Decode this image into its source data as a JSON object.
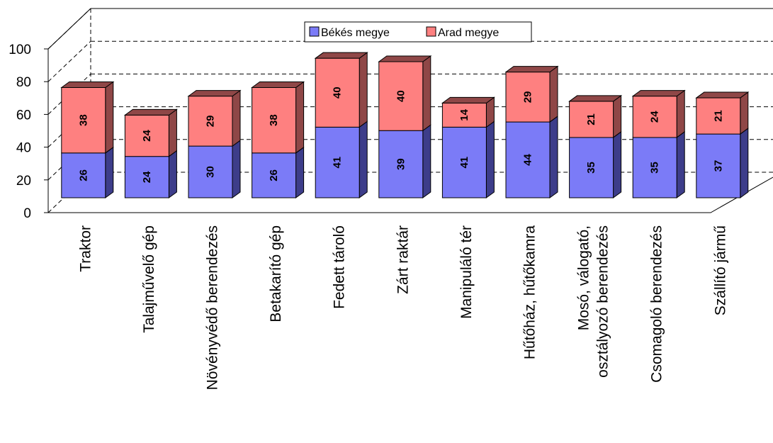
{
  "chart_data": {
    "type": "bar",
    "stacked": true,
    "three_d": true,
    "categories": [
      "Traktor",
      "Talajművelő gép",
      "Növényvédő berendezés",
      "Betakarító gép",
      "Fedett tároló",
      "Zárt raktár",
      "Manipuláló tér",
      "Hűtőház,  hűtőkamra",
      "Mosó,  válogató, osztályozó berendezés",
      "Csomagoló berendezés",
      "Szállító jármű"
    ],
    "category_lines": [
      [
        "Traktor"
      ],
      [
        "Talajművelő gép"
      ],
      [
        "Növényvédő berendezés"
      ],
      [
        "Betakarító gép"
      ],
      [
        "Fedett tároló"
      ],
      [
        "Zárt raktár"
      ],
      [
        "Manipuláló tér"
      ],
      [
        "Hűtőház,  hűtőkamra"
      ],
      [
        "Mosó,  válogató,",
        "osztályozó berendezés"
      ],
      [
        "Csomagoló berendezés"
      ],
      [
        "Szállító jármű"
      ]
    ],
    "series": [
      {
        "name": "Békés megye",
        "color": "#7b7bf7",
        "side_color": "#3d3d8a",
        "values": [
          26,
          24,
          30,
          26,
          41,
          39,
          41,
          44,
          35,
          35,
          37
        ]
      },
      {
        "name": "Arad megye",
        "color": "#fe8080",
        "side_color": "#8f4747",
        "values": [
          38,
          24,
          29,
          38,
          40,
          40,
          14,
          29,
          21,
          24,
          21
        ]
      }
    ],
    "y_ticks": [
      "0",
      "20",
      "40",
      "60",
      "80",
      "100"
    ],
    "ylim": [
      0,
      100
    ],
    "grid": true,
    "legend_position": "top-center"
  }
}
